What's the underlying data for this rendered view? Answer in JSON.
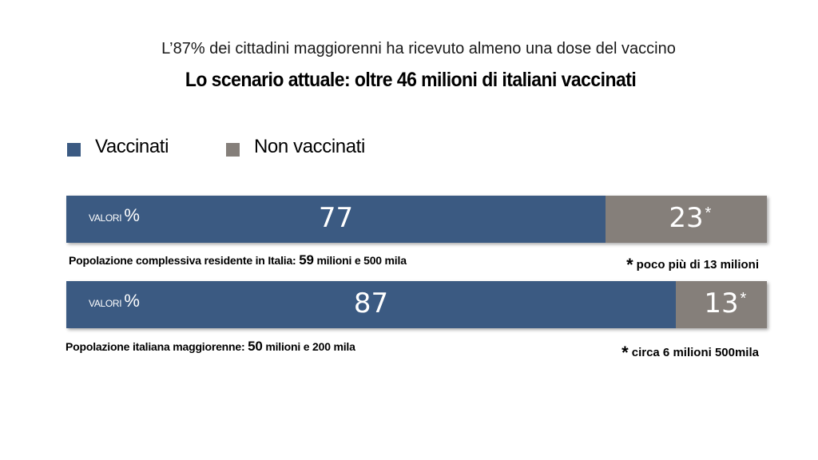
{
  "subtitle": "L’87% dei cittadini maggiorenni ha ricevuto almeno una dose del vaccino",
  "title": "Lo scenario attuale: oltre 46 milioni di italiani vaccinati",
  "legend": {
    "vaccinated": "Vaccinati",
    "not_vaccinated": "Non vaccinati"
  },
  "colors": {
    "vaccinated": "#3b5a82",
    "not_vaccinated": "#857f7a"
  },
  "chart_data": {
    "type": "bar",
    "stacked": true,
    "orientation": "horizontal",
    "unit_label": "VALORI",
    "unit_symbol": "%",
    "series": [
      {
        "name": "Vaccinati",
        "values": [
          77,
          87
        ]
      },
      {
        "name": "Non vaccinati",
        "values": [
          23,
          13
        ]
      }
    ],
    "rows": [
      {
        "vaccinated": 77,
        "not_vaccinated": 23,
        "vaccinated_text": "77",
        "not_vaccinated_text": "23",
        "star": "*",
        "population_label": "Popolazione complessiva residente in Italia:",
        "population_number": "59",
        "population_rest": "milioni e 500 mila",
        "footnote_mark": "*",
        "footnote": "poco più di 13 milioni"
      },
      {
        "vaccinated": 87,
        "not_vaccinated": 13,
        "vaccinated_text": "87",
        "not_vaccinated_text": "13",
        "star": "*",
        "population_label": "Popolazione italiana maggiorenne:",
        "population_number": "50",
        "population_rest": "milioni  e 200 mila",
        "footnote_mark": "*",
        "footnote": "circa 6 milioni 500mila"
      }
    ]
  }
}
